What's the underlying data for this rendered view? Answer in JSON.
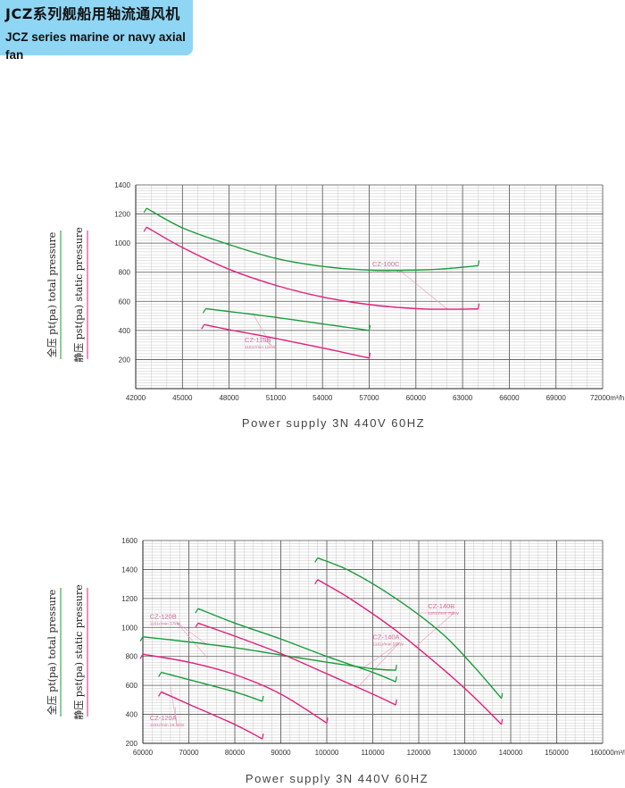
{
  "header": {
    "title_cn": "JCZ系列舰船用轴流通风机",
    "title_en": "JCZ series marine or navy axial fan"
  },
  "legend": {
    "total_label": "全压 pt(pa)  total pressure",
    "static_label": "静压 pst(pa)  static pressure"
  },
  "colors": {
    "total": "#1a9b3a",
    "static": "#e0207c",
    "grid_minor": "#c8c8c8",
    "grid_major": "#555555",
    "leader": "#e69ab8"
  },
  "chart_data": [
    {
      "type": "line",
      "title": "",
      "xlabel": "Power supply   3N 440V  60HZ",
      "x_unit": "m³/h",
      "ylabel": "",
      "xlim": [
        42000,
        72000
      ],
      "ylim": [
        0,
        1400
      ],
      "x_ticks": [
        42000,
        45000,
        48000,
        51000,
        54000,
        57000,
        60000,
        63000,
        66000,
        69000,
        72000
      ],
      "x_tick_labels": [
        "42000",
        "45000",
        "48000",
        "51000",
        "54000",
        "57000",
        "60000",
        "63000",
        "66000",
        "69000",
        "72000m³/h"
      ],
      "y_ticks": [
        200,
        400,
        600,
        800,
        1000,
        1200,
        1400
      ],
      "grid": true,
      "series": [
        {
          "kind": "total",
          "x": [
            42700,
            45000,
            48000,
            51000,
            54000,
            57000,
            60000,
            62000,
            64000
          ],
          "y": [
            1240,
            1105,
            990,
            895,
            840,
            815,
            815,
            825,
            845
          ]
        },
        {
          "kind": "static",
          "x": [
            42700,
            45000,
            48000,
            51000,
            54000,
            57000,
            60000,
            62000,
            64000
          ],
          "y": [
            1110,
            970,
            820,
            710,
            630,
            578,
            550,
            546,
            548
          ]
        },
        {
          "kind": "total",
          "x": [
            46500,
            48000,
            51000,
            54000,
            57000
          ],
          "y": [
            550,
            530,
            490,
            445,
            400
          ]
        },
        {
          "kind": "static",
          "x": [
            46400,
            48000,
            51000,
            54000,
            57000
          ],
          "y": [
            440,
            405,
            345,
            280,
            210
          ]
        }
      ],
      "annotations": [
        {
          "name": "CZ-100C",
          "sub": "1161r/min 22kW",
          "ax": 57200,
          "ay": 840,
          "targets": [
            [
              62000,
              820
            ],
            [
              62000,
              548
            ]
          ]
        },
        {
          "name": "CZ-110B",
          "sub": "1161r/min 11kW",
          "ax": 49000,
          "ay": 320,
          "targets": [
            [
              49500,
              520
            ],
            [
              50000,
              360
            ]
          ]
        }
      ]
    },
    {
      "type": "line",
      "title": "",
      "xlabel": "Power supply   3N 440V  60HZ",
      "x_unit": "m³/h",
      "ylabel": "",
      "xlim": [
        60000,
        160000
      ],
      "ylim": [
        200,
        1600
      ],
      "x_ticks": [
        60000,
        70000,
        80000,
        90000,
        100000,
        110000,
        120000,
        130000,
        140000,
        150000,
        160000
      ],
      "x_tick_labels": [
        "60000",
        "70000",
        "80000",
        "90000",
        "100000",
        "110000",
        "120000",
        "130000",
        "140000",
        "150000",
        "160000m³/h"
      ],
      "y_ticks": [
        200,
        400,
        600,
        800,
        1000,
        1200,
        1400,
        1600
      ],
      "grid": true,
      "series": [
        {
          "kind": "total",
          "x": [
            60000,
            70000,
            80000,
            90000,
            100000,
            110000,
            115000
          ],
          "y": [
            935,
            900,
            860,
            810,
            760,
            715,
            705
          ]
        },
        {
          "kind": "static",
          "x": [
            60000,
            70000,
            80000,
            90000,
            100000
          ],
          "y": [
            815,
            760,
            675,
            540,
            340
          ]
        },
        {
          "kind": "total",
          "x": [
            72000,
            80000,
            90000,
            100000,
            110000,
            115000
          ],
          "y": [
            1130,
            1030,
            920,
            800,
            690,
            625
          ]
        },
        {
          "kind": "static",
          "x": [
            72000,
            80000,
            90000,
            100000,
            110000,
            115000
          ],
          "y": [
            1030,
            940,
            820,
            680,
            540,
            465
          ]
        },
        {
          "kind": "total",
          "x": [
            64000,
            70000,
            80000,
            86000
          ],
          "y": [
            690,
            640,
            555,
            490
          ]
        },
        {
          "kind": "static",
          "x": [
            64000,
            70000,
            80000,
            86000
          ],
          "y": [
            555,
            470,
            330,
            230
          ]
        },
        {
          "kind": "total",
          "x": [
            98000,
            105000,
            115000,
            125000,
            132000,
            138000
          ],
          "y": [
            1480,
            1390,
            1200,
            960,
            730,
            510
          ]
        },
        {
          "kind": "static",
          "x": [
            98000,
            105000,
            115000,
            125000,
            132000,
            138000
          ],
          "y": [
            1330,
            1200,
            980,
            720,
            520,
            330
          ]
        }
      ],
      "annotations": [
        {
          "name": "CZ-120B",
          "sub": "1161r/min 37kW",
          "ax": 61500,
          "ay": 1060,
          "targets": [
            [
              74000,
              880
            ],
            [
              74000,
              790
            ]
          ]
        },
        {
          "name": "CZ-140A",
          "sub": "1161r/min 55kW",
          "ax": 110000,
          "ay": 920,
          "targets": [
            [
              107000,
              700
            ],
            [
              106500,
              580
            ]
          ]
        },
        {
          "name": "CZ-140B",
          "sub": "1161r/min 75kW",
          "ax": 122000,
          "ay": 1130,
          "targets": [
            [
              120000,
              1100
            ],
            [
              119000,
              860
            ]
          ]
        },
        {
          "name": "CZ-120A",
          "sub": "1161r/min 18.5kW",
          "ax": 61500,
          "ay": 360,
          "targets": [
            [
              66000,
              590
            ],
            [
              67000,
              450
            ]
          ]
        }
      ]
    }
  ]
}
